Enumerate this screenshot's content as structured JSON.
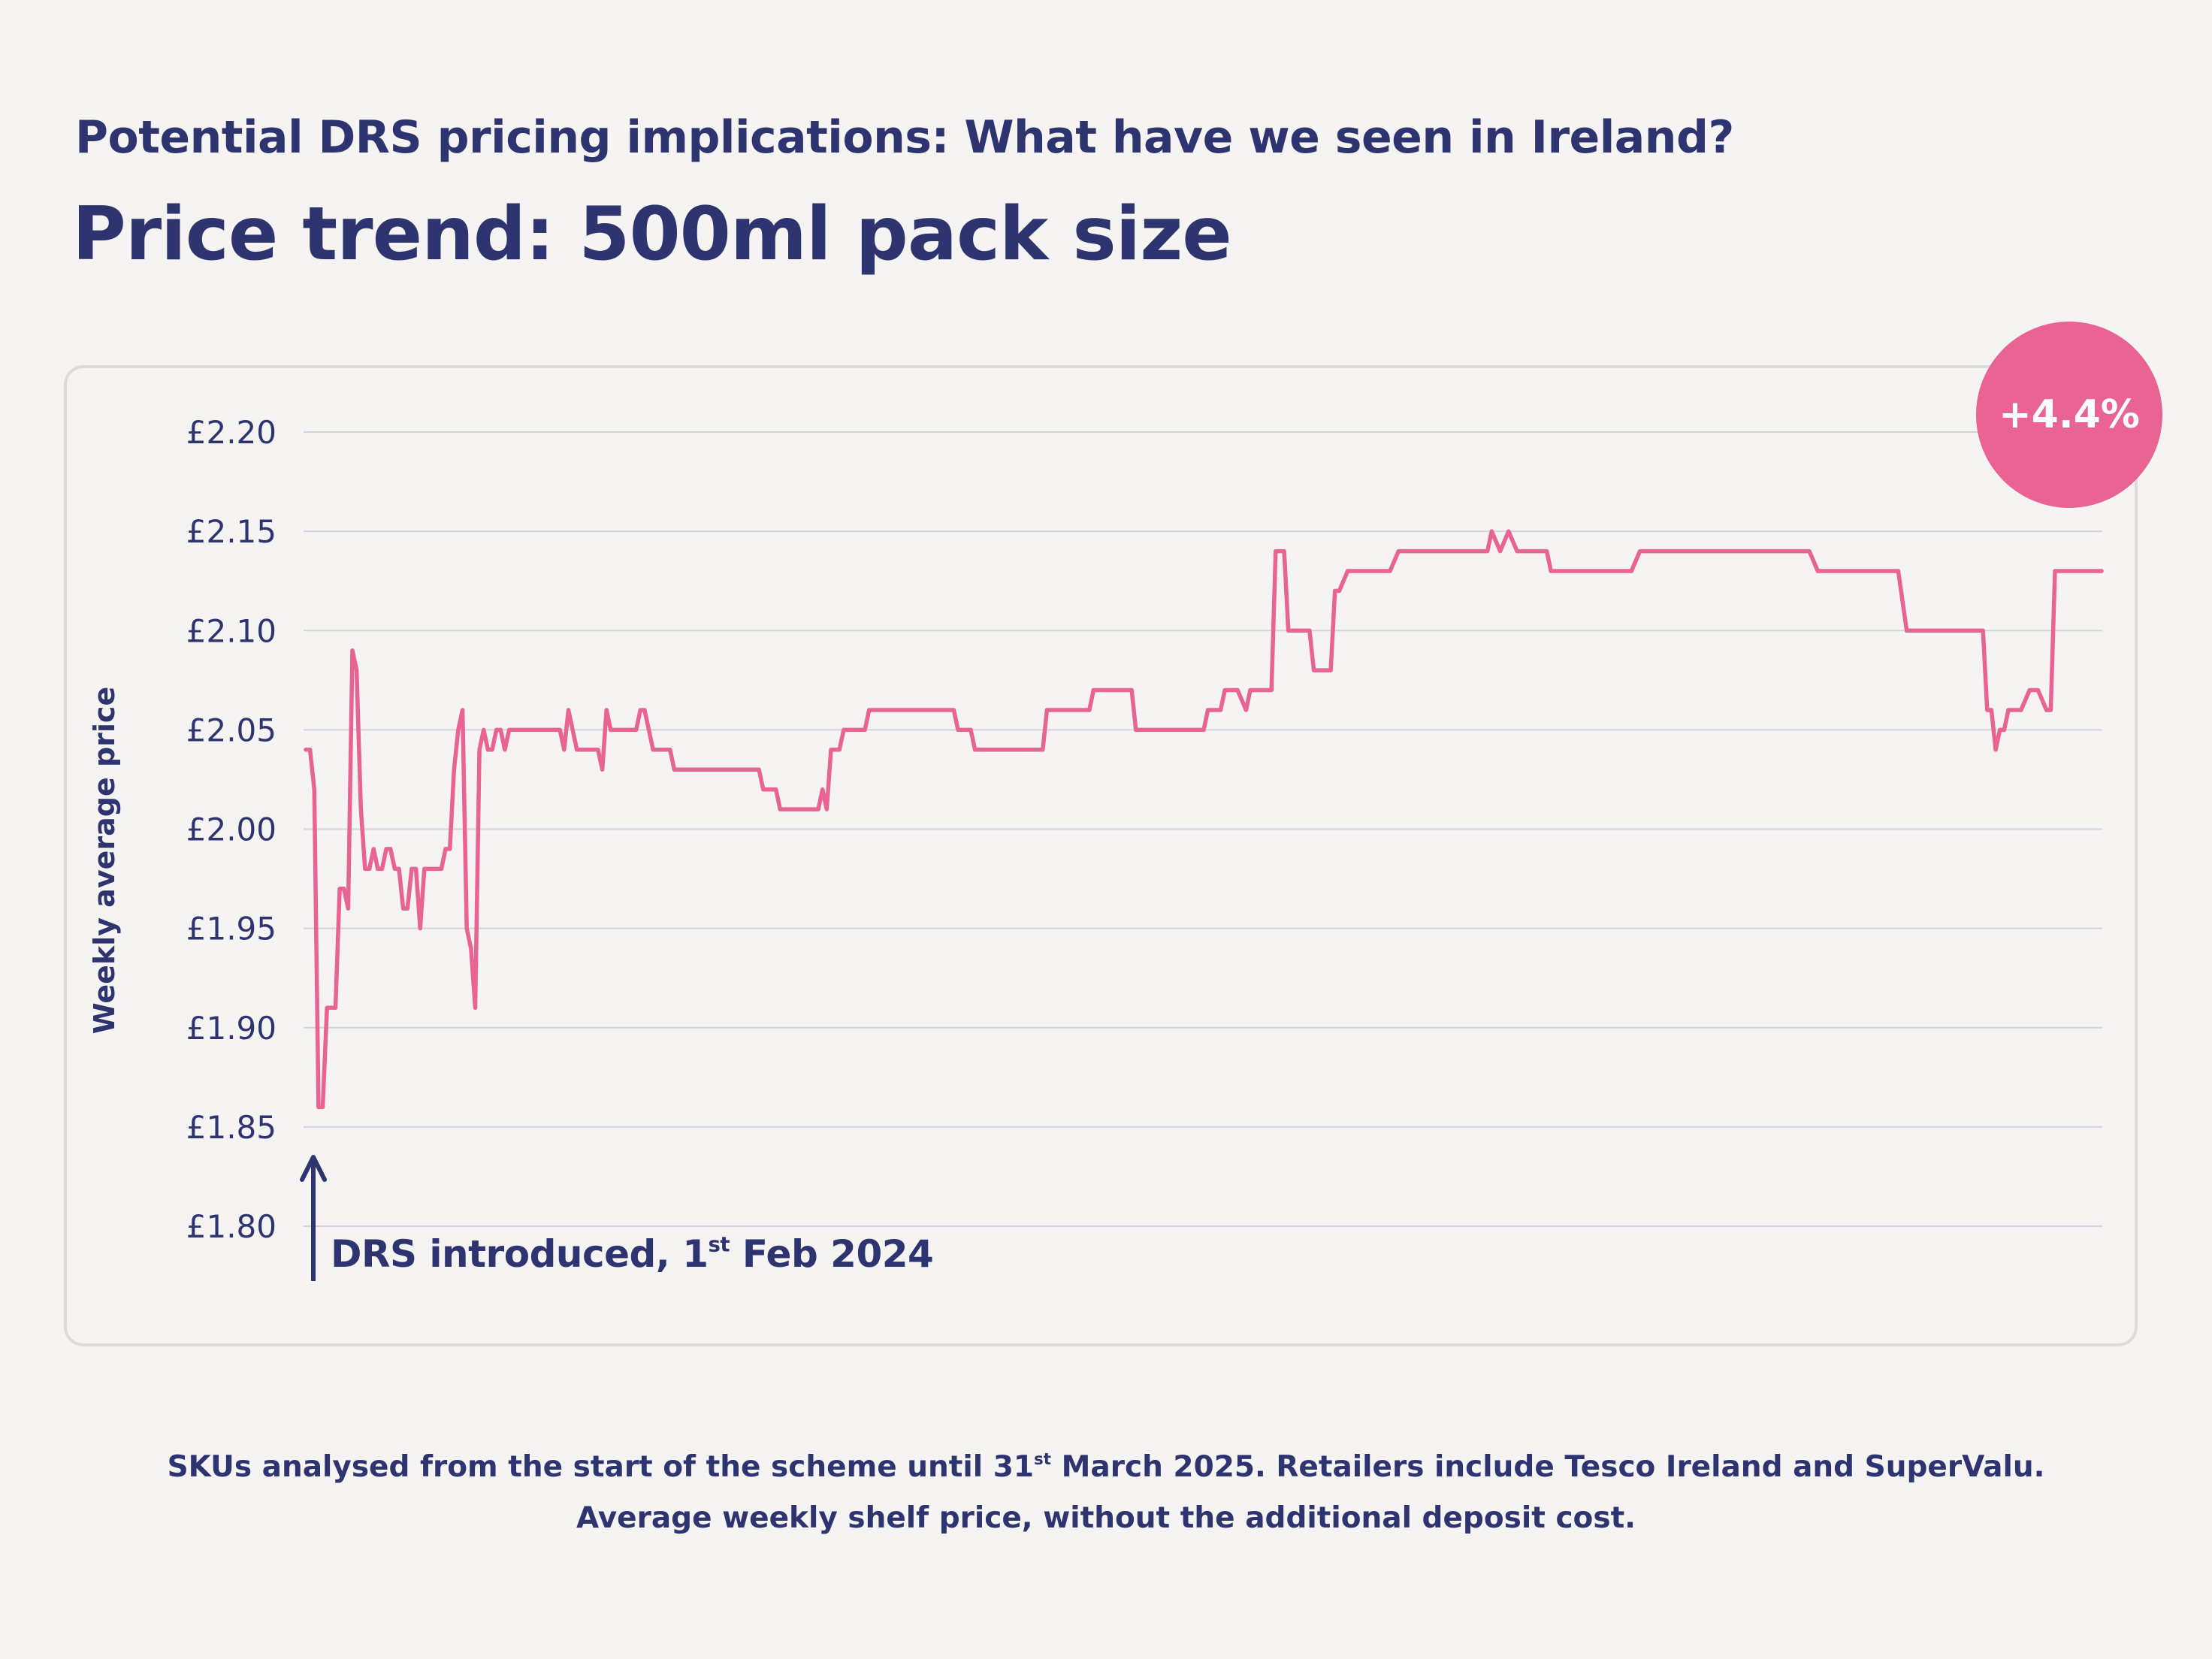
{
  "header": {
    "subtitle": "Potential DRS pricing implications: What have we seen in Ireland?",
    "title": "Price trend: 500ml pack size"
  },
  "badge": {
    "label": "+4.4%",
    "color": "#e96393"
  },
  "annotation": {
    "text_before": "DRS introduced, 1",
    "superscript": "st",
    "text_after": " Feb 2024"
  },
  "footnote": {
    "line1_before": "SKUs analysed from the start of the scheme until 31",
    "line1_superscript": "st",
    "line1_after": " March 2025. Retailers include Tesco Ireland and SuperValu.",
    "line2": "Average weekly shelf price, without the additional deposit cost."
  },
  "chart_data": {
    "type": "line",
    "title": "Price trend: 500ml pack size",
    "xlabel": "",
    "ylabel": "Weekly average price",
    "xlim": [
      "2024-02-01",
      "2025-03-31"
    ],
    "ylim": [
      1.8,
      2.2
    ],
    "y_ticks": [
      "£2.20",
      "£2.15",
      "£2.10",
      "£2.05",
      "£2.00",
      "£1.95",
      "£1.90",
      "£1.85",
      "£1.80"
    ],
    "y_tick_values": [
      2.2,
      2.15,
      2.1,
      2.05,
      2.0,
      1.95,
      1.9,
      1.85,
      1.8
    ],
    "grid": true,
    "line_color": "#e96393",
    "points": [
      [
        "2024-02-01",
        2.04
      ],
      [
        "2024-02-02",
        2.04
      ],
      [
        "2024-02-03",
        2.02
      ],
      [
        "2024-02-04",
        1.86
      ],
      [
        "2024-02-05",
        1.86
      ],
      [
        "2024-02-06",
        1.91
      ],
      [
        "2024-02-08",
        1.91
      ],
      [
        "2024-02-09",
        1.97
      ],
      [
        "2024-02-10",
        1.97
      ],
      [
        "2024-02-11",
        1.96
      ],
      [
        "2024-02-12",
        2.09
      ],
      [
        "2024-02-13",
        2.08
      ],
      [
        "2024-02-14",
        2.01
      ],
      [
        "2024-02-15",
        1.98
      ],
      [
        "2024-02-16",
        1.98
      ],
      [
        "2024-02-17",
        1.99
      ],
      [
        "2024-02-18",
        1.98
      ],
      [
        "2024-02-19",
        1.98
      ],
      [
        "2024-02-20",
        1.99
      ],
      [
        "2024-02-21",
        1.99
      ],
      [
        "2024-02-22",
        1.98
      ],
      [
        "2024-02-23",
        1.98
      ],
      [
        "2024-02-24",
        1.96
      ],
      [
        "2024-02-25",
        1.96
      ],
      [
        "2024-02-26",
        1.98
      ],
      [
        "2024-02-27",
        1.98
      ],
      [
        "2024-02-28",
        1.95
      ],
      [
        "2024-02-29",
        1.98
      ],
      [
        "2024-03-04",
        1.98
      ],
      [
        "2024-03-05",
        1.99
      ],
      [
        "2024-03-06",
        1.99
      ],
      [
        "2024-03-07",
        2.03
      ],
      [
        "2024-03-08",
        2.05
      ],
      [
        "2024-03-09",
        2.06
      ],
      [
        "2024-03-10",
        1.95
      ],
      [
        "2024-03-11",
        1.94
      ],
      [
        "2024-03-12",
        1.91
      ],
      [
        "2024-03-13",
        2.04
      ],
      [
        "2024-03-14",
        2.05
      ],
      [
        "2024-03-15",
        2.04
      ],
      [
        "2024-03-16",
        2.04
      ],
      [
        "2024-03-17",
        2.05
      ],
      [
        "2024-03-18",
        2.05
      ],
      [
        "2024-03-19",
        2.04
      ],
      [
        "2024-03-20",
        2.05
      ],
      [
        "2024-04-01",
        2.05
      ],
      [
        "2024-04-02",
        2.04
      ],
      [
        "2024-04-03",
        2.06
      ],
      [
        "2024-04-05",
        2.04
      ],
      [
        "2024-04-10",
        2.04
      ],
      [
        "2024-04-11",
        2.03
      ],
      [
        "2024-04-12",
        2.06
      ],
      [
        "2024-04-13",
        2.05
      ],
      [
        "2024-04-19",
        2.05
      ],
      [
        "2024-04-20",
        2.06
      ],
      [
        "2024-04-21",
        2.06
      ],
      [
        "2024-04-23",
        2.04
      ],
      [
        "2024-04-27",
        2.04
      ],
      [
        "2024-04-28",
        2.03
      ],
      [
        "2024-05-18",
        2.03
      ],
      [
        "2024-05-19",
        2.02
      ],
      [
        "2024-05-22",
        2.02
      ],
      [
        "2024-05-23",
        2.01
      ],
      [
        "2024-06-01",
        2.01
      ],
      [
        "2024-06-02",
        2.02
      ],
      [
        "2024-06-03",
        2.01
      ],
      [
        "2024-06-04",
        2.04
      ],
      [
        "2024-06-06",
        2.04
      ],
      [
        "2024-06-07",
        2.05
      ],
      [
        "2024-06-12",
        2.05
      ],
      [
        "2024-06-13",
        2.06
      ],
      [
        "2024-07-03",
        2.06
      ],
      [
        "2024-07-04",
        2.05
      ],
      [
        "2024-07-07",
        2.05
      ],
      [
        "2024-07-08",
        2.04
      ],
      [
        "2024-07-24",
        2.04
      ],
      [
        "2024-07-25",
        2.06
      ],
      [
        "2024-08-04",
        2.06
      ],
      [
        "2024-08-05",
        2.07
      ],
      [
        "2024-08-14",
        2.07
      ],
      [
        "2024-08-15",
        2.05
      ],
      [
        "2024-08-31",
        2.05
      ],
      [
        "2024-09-01",
        2.06
      ],
      [
        "2024-09-04",
        2.06
      ],
      [
        "2024-09-05",
        2.07
      ],
      [
        "2024-09-08",
        2.07
      ],
      [
        "2024-09-10",
        2.06
      ],
      [
        "2024-09-11",
        2.07
      ],
      [
        "2024-09-16",
        2.07
      ],
      [
        "2024-09-17",
        2.14
      ],
      [
        "2024-09-19",
        2.14
      ],
      [
        "2024-09-20",
        2.1
      ],
      [
        "2024-09-25",
        2.1
      ],
      [
        "2024-09-26",
        2.08
      ],
      [
        "2024-09-30",
        2.08
      ],
      [
        "2024-10-01",
        2.12
      ],
      [
        "2024-10-02",
        2.12
      ],
      [
        "2024-10-04",
        2.13
      ],
      [
        "2024-10-14",
        2.13
      ],
      [
        "2024-10-16",
        2.14
      ],
      [
        "2024-11-06",
        2.14
      ],
      [
        "2024-11-07",
        2.15
      ],
      [
        "2024-11-09",
        2.14
      ],
      [
        "2024-11-11",
        2.15
      ],
      [
        "2024-11-13",
        2.14
      ],
      [
        "2024-11-20",
        2.14
      ],
      [
        "2024-11-21",
        2.13
      ],
      [
        "2024-12-10",
        2.13
      ],
      [
        "2024-12-12",
        2.14
      ],
      [
        "2025-01-21",
        2.14
      ],
      [
        "2025-01-23",
        2.13
      ],
      [
        "2025-02-11",
        2.13
      ],
      [
        "2025-02-13",
        2.1
      ],
      [
        "2025-03-03",
        2.1
      ],
      [
        "2025-03-04",
        2.06
      ],
      [
        "2025-03-05",
        2.06
      ],
      [
        "2025-03-06",
        2.04
      ],
      [
        "2025-03-07",
        2.05
      ],
      [
        "2025-03-08",
        2.05
      ],
      [
        "2025-03-09",
        2.06
      ],
      [
        "2025-03-12",
        2.06
      ],
      [
        "2025-03-14",
        2.07
      ],
      [
        "2025-03-16",
        2.07
      ],
      [
        "2025-03-18",
        2.06
      ],
      [
        "2025-03-19",
        2.06
      ],
      [
        "2025-03-20",
        2.13
      ],
      [
        "2025-03-31",
        2.13
      ]
    ]
  }
}
